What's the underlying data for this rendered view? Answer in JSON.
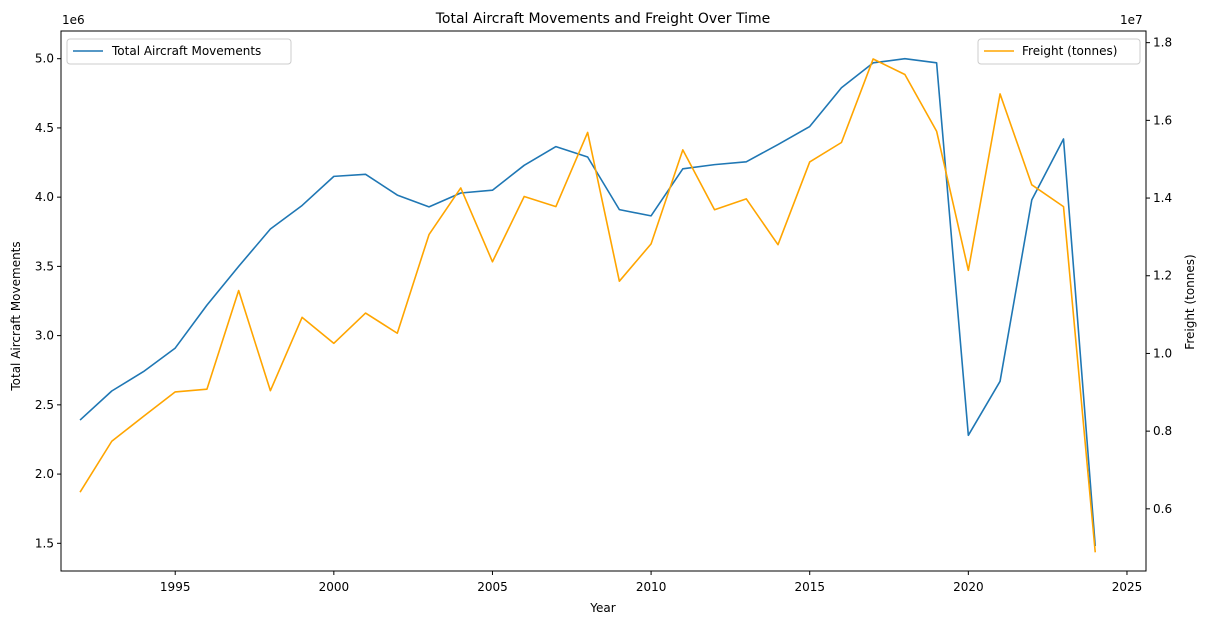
{
  "chart_data": {
    "type": "line",
    "title": "Total Aircraft Movements and Freight Over Time",
    "xlabel": "Year",
    "xlim": [
      1991.4,
      2025.6
    ],
    "xticks": [
      1995,
      2000,
      2005,
      2010,
      2015,
      2020,
      2025
    ],
    "x": [
      1992,
      1993,
      1994,
      1995,
      1996,
      1997,
      1998,
      1999,
      2000,
      2001,
      2002,
      2003,
      2004,
      2005,
      2006,
      2007,
      2008,
      2009,
      2010,
      2011,
      2012,
      2013,
      2014,
      2015,
      2016,
      2017,
      2018,
      2019,
      2020,
      2021,
      2022,
      2023,
      2024
    ],
    "left_axis": {
      "label": "Total Aircraft Movements",
      "offset_text": "1e6",
      "ylim": [
        1.3,
        5.2
      ],
      "ticks": [
        1.5,
        2.0,
        2.5,
        3.0,
        3.5,
        4.0,
        4.5,
        5.0
      ],
      "tick_labels": [
        "1.5",
        "2.0",
        "2.5",
        "3.0",
        "3.5",
        "4.0",
        "4.5",
        "5.0"
      ]
    },
    "right_axis": {
      "label": "Freight (tonnes)",
      "offset_text": "1e7",
      "ylim": [
        0.44,
        1.83
      ],
      "ticks": [
        0.6,
        0.8,
        1.0,
        1.2,
        1.4,
        1.6,
        1.8
      ],
      "tick_labels": [
        "0.6",
        "0.8",
        "1.0",
        "1.2",
        "1.4",
        "1.6",
        "1.8"
      ]
    },
    "series": [
      {
        "name": "Total Aircraft Movements",
        "axis": "left",
        "color": "#1f77b4",
        "values": [
          2.39,
          2.6,
          2.74,
          2.91,
          3.22,
          3.5,
          3.77,
          3.94,
          4.15,
          4.165,
          4.015,
          3.93,
          4.03,
          4.05,
          4.23,
          4.365,
          4.29,
          3.91,
          3.865,
          4.205,
          4.235,
          4.255,
          4.38,
          4.51,
          4.79,
          4.97,
          5.0,
          4.97,
          2.28,
          2.67,
          3.98,
          4.42,
          1.48
        ]
      },
      {
        "name": "Freight (tonnes)",
        "axis": "right",
        "color": "#ffa500",
        "values": [
          0.643,
          0.774,
          0.838,
          0.901,
          0.908,
          1.162,
          0.904,
          1.093,
          1.026,
          1.104,
          1.052,
          1.306,
          1.426,
          1.236,
          1.404,
          1.378,
          1.569,
          1.186,
          1.282,
          1.524,
          1.37,
          1.398,
          1.28,
          1.493,
          1.543,
          1.758,
          1.718,
          1.572,
          1.214,
          1.668,
          1.434,
          1.378,
          0.488
        ]
      }
    ],
    "legend": [
      {
        "label": "Total Aircraft Movements",
        "placement": "upper-left"
      },
      {
        "label": "Freight (tonnes)",
        "placement": "upper-right"
      }
    ]
  }
}
